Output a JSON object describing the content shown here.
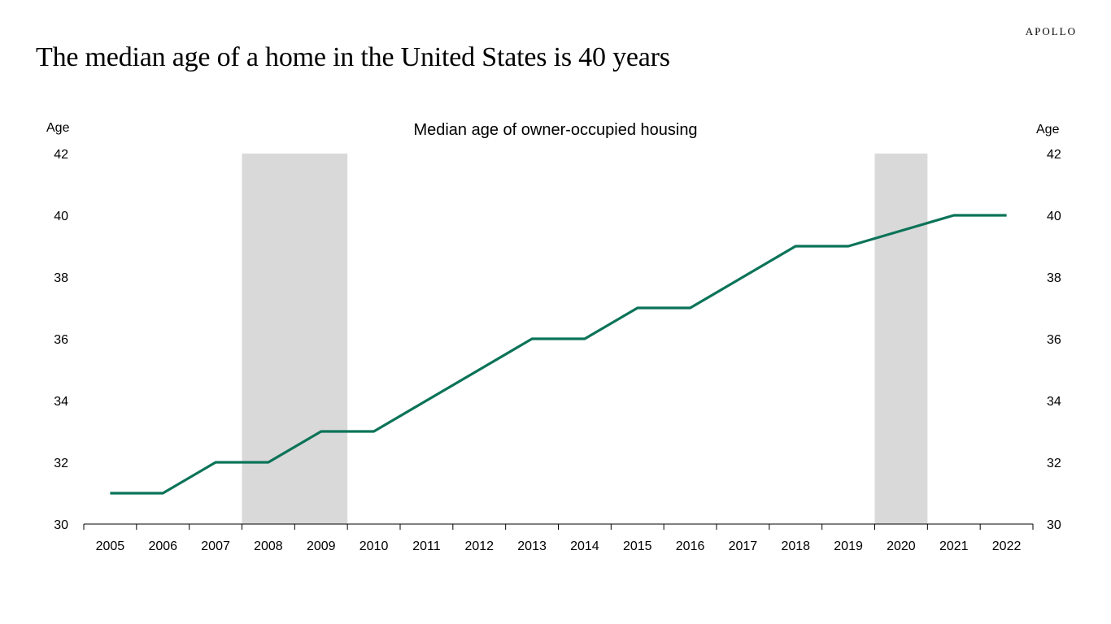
{
  "brand": "APOLLO",
  "headline": "The median age of a home in the United States is 40 years",
  "colors": {
    "line": "#0b7358",
    "recession": "#d9d9d9",
    "axis": "#000000"
  },
  "chart_data": {
    "type": "line",
    "title": "Median age of owner-occupied housing",
    "ylabel_left": "Age",
    "ylabel_right": "Age",
    "xlabel": "",
    "ylim": [
      30,
      42
    ],
    "yticks": [
      30,
      32,
      34,
      36,
      38,
      40,
      42
    ],
    "categories": [
      "2005",
      "2006",
      "2007",
      "2008",
      "2009",
      "2010",
      "2011",
      "2012",
      "2013",
      "2014",
      "2015",
      "2016",
      "2017",
      "2018",
      "2019",
      "2020",
      "2021",
      "2022"
    ],
    "series": [
      {
        "values": [
          31,
          31,
          32,
          32,
          33,
          33,
          null,
          null,
          36,
          36,
          37,
          37,
          null,
          39,
          39,
          null,
          40,
          40
        ]
      }
    ],
    "shaded_periods": [
      {
        "from": "2008",
        "to": "2009"
      },
      {
        "from": "2020",
        "to": "2020"
      }
    ],
    "grid": false,
    "legend": "none"
  }
}
